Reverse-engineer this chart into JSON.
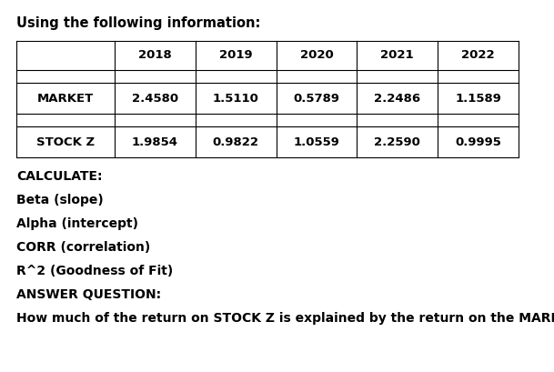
{
  "title": "Using the following information:",
  "col_headers": [
    "",
    "2018",
    "2019",
    "2020",
    "2021",
    "2022"
  ],
  "row1_label": "MARKET",
  "row1_values": [
    "2.4580",
    "1.5110",
    "0.5789",
    "2.2486",
    "1.1589"
  ],
  "row2_label": "STOCK Z",
  "row2_values": [
    "1.9854",
    "0.9822",
    "1.0559",
    "2.2590",
    "0.9995"
  ],
  "calculate_label": "CALCULATE:",
  "items": [
    "Beta (slope)",
    "Alpha (intercept)",
    "CORR (correlation)",
    "R^2 (Goodness of Fit)"
  ],
  "answer_label": "ANSWER QUESTION:",
  "answer_text": "How much of the return on STOCK Z is explained by the return on the MARKET?",
  "bg_color": "#ffffff",
  "text_color": "#000000",
  "table_border_color": "#000000",
  "font_size_title": 10.5,
  "font_size_table": 9.5,
  "font_size_body": 10.0,
  "fig_width": 6.09,
  "fig_height": 4.09,
  "dpi": 100
}
